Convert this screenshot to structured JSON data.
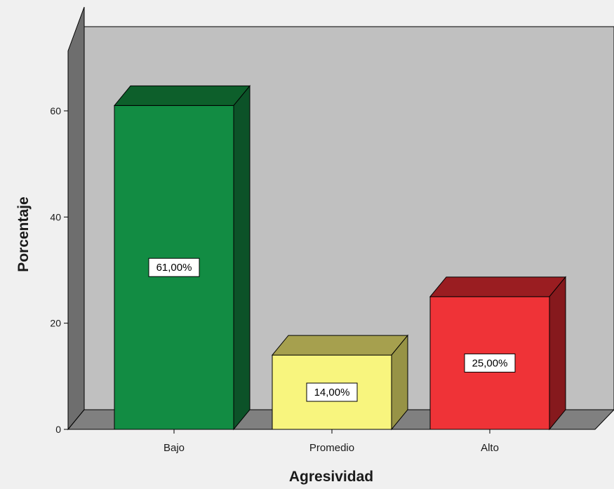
{
  "chart_data": {
    "type": "bar",
    "categories": [
      "Bajo",
      "Promedio",
      "Alto"
    ],
    "values": [
      61,
      14,
      25
    ],
    "data_labels": [
      "61,00%",
      "14,00%",
      "25,00%"
    ],
    "title": "",
    "xlabel": "Agresividad",
    "ylabel": "Porcentaje",
    "ylim": [
      0,
      75
    ],
    "yticks": [
      0,
      20,
      40,
      60
    ],
    "ytick_labels": [
      "0",
      "20",
      "40",
      "60"
    ],
    "grid": false,
    "legend": "none",
    "style": "3d",
    "colors": {
      "background": "#f0f0f0",
      "back_wall": "#c0c0c0",
      "side_wall": "#6e6e6e",
      "floor": "#808080",
      "bars": [
        {
          "front": "#128c43",
          "top": "#0d5f2b",
          "side": "#0c5228"
        },
        {
          "front": "#f8f57e",
          "top": "#a6a04e",
          "side": "#979346"
        },
        {
          "front": "#ef3337",
          "top": "#9a1d21",
          "side": "#86191d"
        }
      ]
    }
  }
}
